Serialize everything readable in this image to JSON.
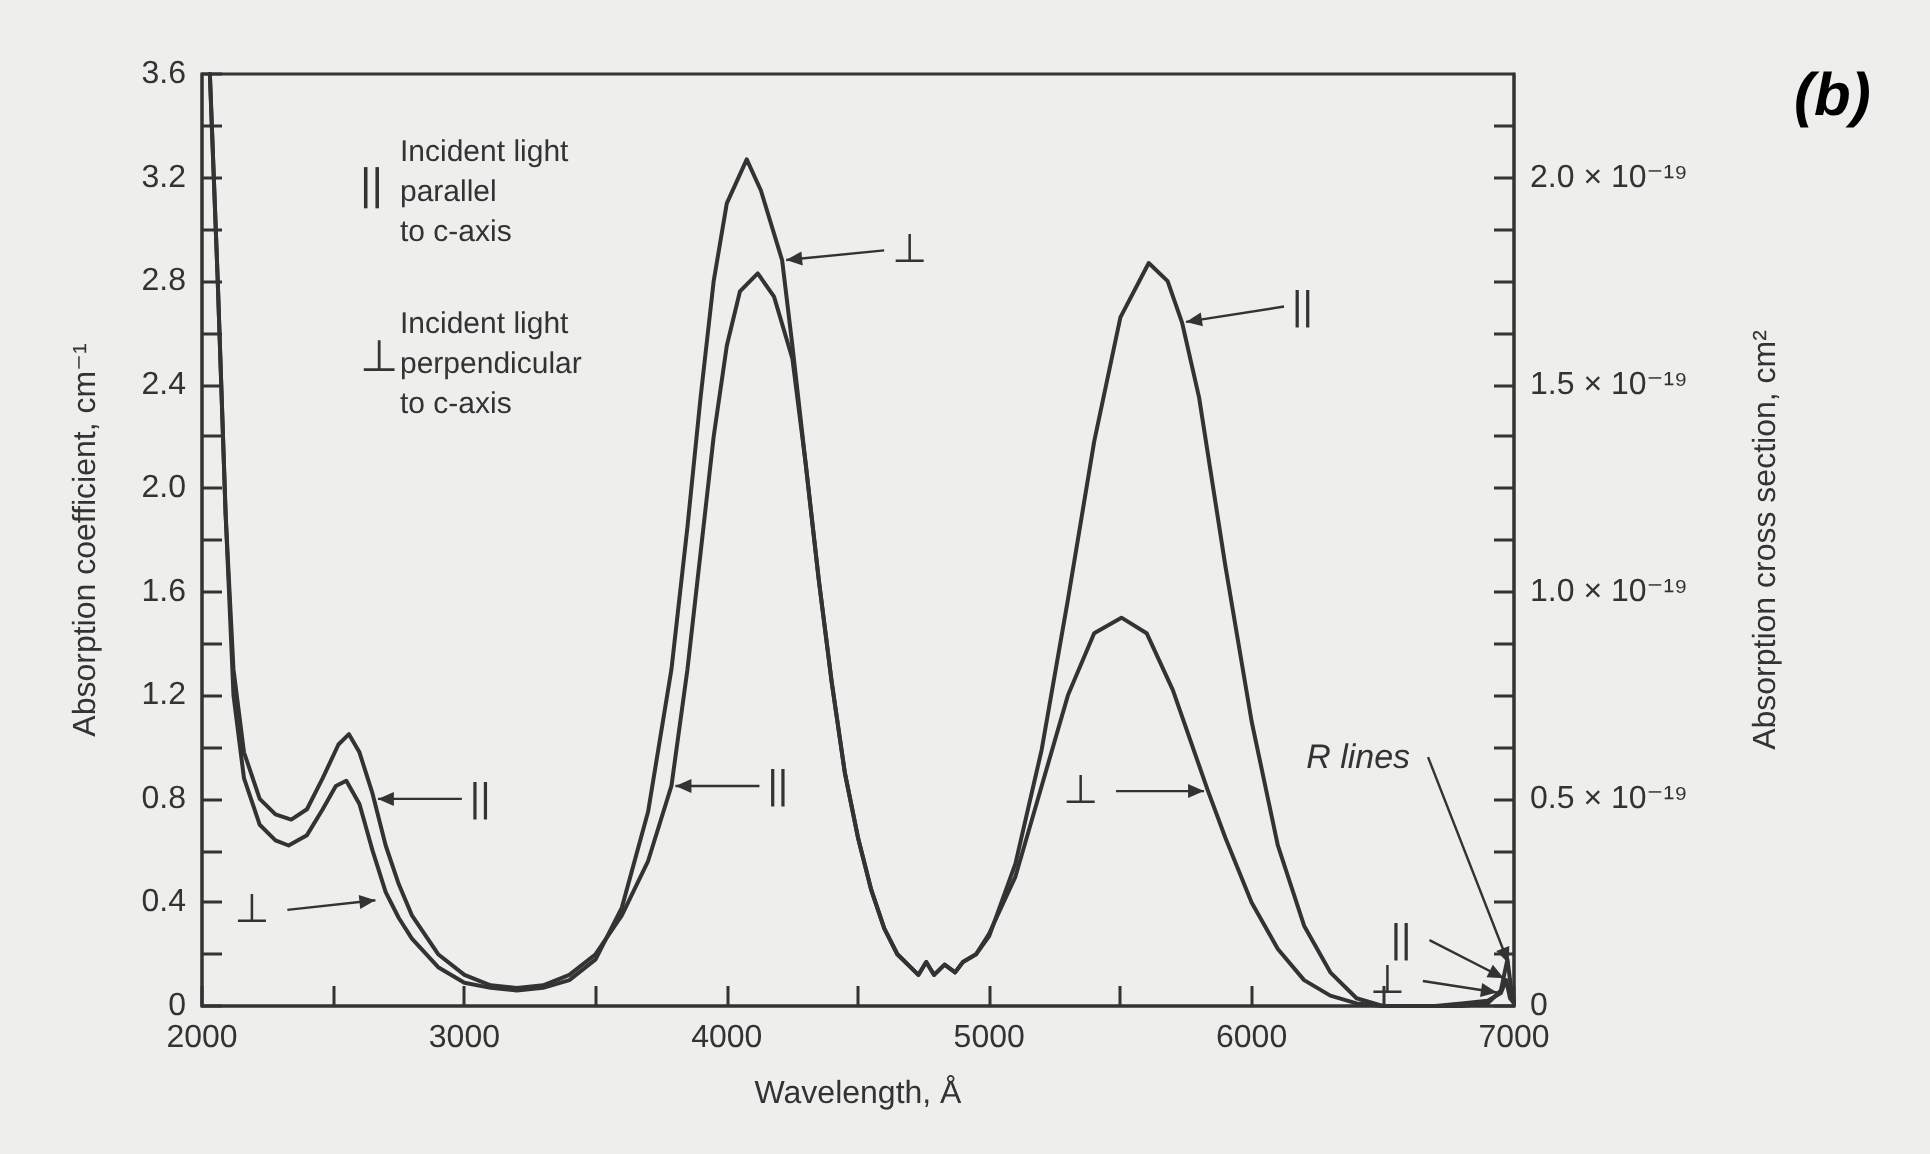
{
  "chart_data": {
    "type": "line",
    "xlabel": "Wavelength, Å",
    "ylabel": "Absorption coefficient, cm⁻¹",
    "y2label": "Absorption cross section, cm²",
    "xlim": [
      2000,
      7000
    ],
    "xticks": [
      2000,
      {
        "value": 2500,
        "label": null
      },
      3000,
      {
        "value": 3500,
        "label": null
      },
      4000,
      {
        "value": 4500,
        "label": null
      },
      5000,
      {
        "value": 5500,
        "label": null
      },
      6000,
      {
        "value": 6500,
        "label": null
      },
      7000
    ],
    "ylim": [
      0,
      3.6
    ],
    "yticks": [
      0,
      {
        "value": 0.2,
        "label": null
      },
      0.4,
      {
        "value": 0.6,
        "label": null
      },
      0.8,
      {
        "value": 1.0,
        "label": null
      },
      1.2,
      {
        "value": 1.4,
        "label": null
      },
      1.6,
      {
        "value": 1.8,
        "label": null
      },
      {
        "value": 2.0,
        "label": "2.0"
      },
      {
        "value": 2.2,
        "label": null
      },
      2.4,
      {
        "value": 2.6,
        "label": null
      },
      2.8,
      {
        "value": 3.0,
        "label": null
      },
      3.2,
      {
        "value": 3.4,
        "label": null
      },
      3.6
    ],
    "y2lim": [
      0,
      2.25e-19
    ],
    "y2ticks": [
      {
        "value": 0,
        "label": "0"
      },
      {
        "value": 1.25e-20,
        "label": null
      },
      {
        "value": 2.5e-20,
        "label": null
      },
      {
        "value": 3.75e-20,
        "label": null
      },
      {
        "value": 5e-20,
        "label": "0.5 × 10⁻¹⁹"
      },
      {
        "value": 6.25e-20,
        "label": null
      },
      {
        "value": 7.5e-20,
        "label": null
      },
      {
        "value": 8.75e-20,
        "label": null
      },
      {
        "value": 1e-19,
        "label": "1.0 × 10⁻¹⁹"
      },
      {
        "value": 1.125e-19,
        "label": null
      },
      {
        "value": 1.25e-19,
        "label": null
      },
      {
        "value": 1.375e-19,
        "label": null
      },
      {
        "value": 1.5e-19,
        "label": "1.5 × 10⁻¹⁹"
      },
      {
        "value": 1.625e-19,
        "label": null
      },
      {
        "value": 1.75e-19,
        "label": null
      },
      {
        "value": 1.875e-19,
        "label": null
      },
      {
        "value": 2e-19,
        "label": "2.0 × 10⁻¹⁹"
      },
      {
        "value": 2.125e-19,
        "label": null
      }
    ],
    "grid": false,
    "marker": "none",
    "line_style": "solid",
    "series": [
      {
        "color": "#333333",
        "x": [
          2030,
          2060,
          2090,
          2120,
          2160,
          2220,
          2280,
          2340,
          2400,
          2460,
          2520,
          2560,
          2600,
          2650,
          2700,
          2750,
          2800,
          2900,
          3000,
          3100,
          3200,
          3300,
          3400,
          3500,
          3600,
          3700,
          3789,
          3850,
          3900,
          3950,
          4000,
          4050,
          4118,
          4180,
          4250,
          4300,
          4350,
          4400,
          4450,
          4500,
          4550,
          4600,
          4650,
          4700,
          4730,
          4760,
          4790,
          4830,
          4870,
          4900,
          4950,
          5000,
          5100,
          5200,
          5300,
          5400,
          5500,
          5608,
          5680,
          5735,
          5800,
          5900,
          6000,
          6100,
          6200,
          6300,
          6400,
          6500,
          6800,
          6900,
          6950,
          6975,
          6990,
          7000
        ],
        "values": [
          3.6,
          2.8,
          1.9,
          1.3,
          0.98,
          0.8,
          0.74,
          0.72,
          0.76,
          0.88,
          1.01,
          1.05,
          0.98,
          0.82,
          0.62,
          0.47,
          0.35,
          0.2,
          0.12,
          0.08,
          0.07,
          0.08,
          0.12,
          0.2,
          0.35,
          0.56,
          0.85,
          1.3,
          1.75,
          2.2,
          2.55,
          2.76,
          2.83,
          2.74,
          2.5,
          2.1,
          1.65,
          1.25,
          0.9,
          0.65,
          0.45,
          0.3,
          0.2,
          0.15,
          0.12,
          0.17,
          0.12,
          0.16,
          0.13,
          0.17,
          0.2,
          0.27,
          0.55,
          0.99,
          1.57,
          2.18,
          2.66,
          2.87,
          2.8,
          2.64,
          2.35,
          1.7,
          1.1,
          0.62,
          0.31,
          0.13,
          0.03,
          0,
          0,
          0.01,
          0.06,
          0.18,
          0.06,
          0.02
        ]
      },
      {
        "color": "#333333",
        "x": [
          2030,
          2060,
          2090,
          2120,
          2160,
          2220,
          2280,
          2330,
          2400,
          2460,
          2510,
          2550,
          2600,
          2650,
          2700,
          2750,
          2800,
          2900,
          3000,
          3100,
          3200,
          3300,
          3400,
          3500,
          3600,
          3700,
          3789,
          3850,
          3900,
          3950,
          4000,
          4076,
          4130,
          4211,
          4250,
          4300,
          4350,
          4400,
          4450,
          4500,
          4550,
          4600,
          4650,
          4700,
          4730,
          4760,
          4790,
          4830,
          4870,
          4900,
          4950,
          5000,
          5100,
          5200,
          5300,
          5400,
          5504,
          5600,
          5700,
          5834,
          5900,
          6000,
          6100,
          6200,
          6300,
          6400,
          6500,
          6700,
          6800,
          6900,
          6950,
          6970,
          6985,
          7000
        ],
        "values": [
          3.6,
          2.8,
          1.9,
          1.2,
          0.88,
          0.7,
          0.64,
          0.62,
          0.66,
          0.76,
          0.85,
          0.87,
          0.78,
          0.6,
          0.44,
          0.34,
          0.26,
          0.15,
          0.09,
          0.07,
          0.06,
          0.07,
          0.1,
          0.18,
          0.38,
          0.75,
          1.3,
          1.85,
          2.35,
          2.8,
          3.1,
          3.27,
          3.15,
          2.88,
          2.55,
          2.1,
          1.65,
          1.25,
          0.9,
          0.65,
          0.45,
          0.3,
          0.2,
          0.15,
          0.12,
          0.17,
          0.12,
          0.16,
          0.13,
          0.17,
          0.2,
          0.28,
          0.5,
          0.85,
          1.2,
          1.44,
          1.5,
          1.44,
          1.22,
          0.83,
          0.65,
          0.4,
          0.22,
          0.1,
          0.04,
          0.01,
          0,
          0,
          0.01,
          0.02,
          0.05,
          0.1,
          0.03,
          0.01
        ]
      }
    ],
    "annotations": [
      "(b)",
      "||",
      "Incident light\nparallel\nto c-axis",
      "⊥",
      "Incident light\nperpendicular\nto c-axis",
      {
        "text": "||",
        "x": 2655,
        "y": 0.8
      },
      {
        "text": "⊥",
        "x": 2676,
        "y": 0.41
      },
      {
        "text": "||",
        "x": 3789,
        "y": 0.85
      },
      {
        "text": "⊥",
        "x": 4211,
        "y": 2.88
      },
      {
        "text": "||",
        "x": 5735,
        "y": 2.64
      },
      {
        "text": "⊥",
        "x": 5834,
        "y": 0.83
      },
      {
        "text": "R lines",
        "x": 6985,
        "y": 0.15
      },
      {
        "text": "||",
        "x": 6975,
        "y": 0.1
      },
      {
        "text": "⊥",
        "x": 6950,
        "y": 0.05
      }
    ]
  }
}
